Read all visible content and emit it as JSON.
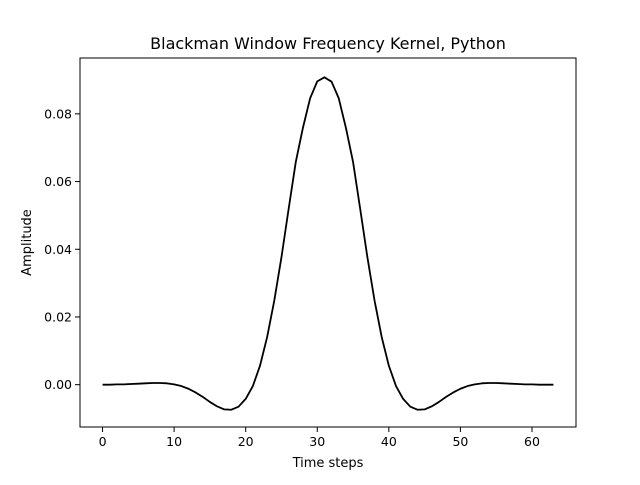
{
  "chart_data": {
    "type": "line",
    "title": "Blackman Window Frequency Kernel, Python",
    "xlabel": "Time steps",
    "ylabel": "Amplitude",
    "xlim": [
      -3.15,
      66.15
    ],
    "ylim": [
      -0.0125,
      0.0965
    ],
    "xticks": [
      0,
      10,
      20,
      30,
      40,
      50,
      60
    ],
    "xtick_labels": [
      "0",
      "10",
      "20",
      "30",
      "40",
      "50",
      "60"
    ],
    "yticks": [
      0.0,
      0.02,
      0.04,
      0.06,
      0.08
    ],
    "ytick_labels": [
      "0.00",
      "0.02",
      "0.04",
      "0.06",
      "0.08"
    ],
    "grid": false,
    "legend": "none",
    "line_color": "#000000",
    "series": [
      {
        "x": [
          0,
          1,
          2,
          3,
          4,
          5,
          6,
          7,
          8,
          9,
          10,
          11,
          12,
          13,
          14,
          15,
          16,
          17,
          18,
          19,
          20,
          21,
          22,
          23,
          24,
          25,
          26,
          27,
          28,
          29,
          30,
          31,
          32,
          33,
          34,
          35,
          36,
          37,
          38,
          39,
          40,
          41,
          42,
          43,
          44,
          45,
          46,
          47,
          48,
          49,
          50,
          51,
          52,
          53,
          54,
          55,
          56,
          57,
          58,
          59,
          60,
          61,
          62,
          63
        ],
        "y": [
          0.0,
          0.0,
          0.0001,
          0.0001,
          0.0002,
          0.0003,
          0.0004,
          0.0005,
          0.0005,
          0.0004,
          0.0001,
          -0.0004,
          -0.0012,
          -0.0023,
          -0.0036,
          -0.0051,
          -0.0064,
          -0.0073,
          -0.0074,
          -0.0065,
          -0.0042,
          -0.0004,
          0.0056,
          0.0141,
          0.0249,
          0.0377,
          0.0519,
          0.0658,
          0.0759,
          0.0846,
          0.0896,
          0.0908,
          0.0895,
          0.0846,
          0.0759,
          0.0658,
          0.0519,
          0.0377,
          0.0249,
          0.0141,
          0.0056,
          -0.0004,
          -0.0042,
          -0.0065,
          -0.0074,
          -0.0073,
          -0.0064,
          -0.0051,
          -0.0036,
          -0.0023,
          -0.0012,
          -0.0004,
          0.0001,
          0.0004,
          0.0005,
          0.0005,
          0.0004,
          0.0003,
          0.0002,
          0.0001,
          0.0001,
          0.0,
          0.0,
          0.0
        ]
      }
    ]
  }
}
